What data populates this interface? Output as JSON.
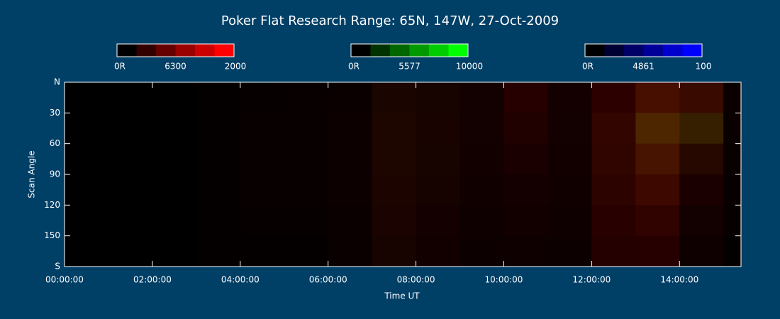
{
  "chart_data": {
    "type": "heatmap",
    "title": "Poker Flat Research Range: 65N, 147W, 27-Oct-2009",
    "x_label": "Time UT",
    "y_label": "Scan Angle",
    "background": "#003f66",
    "colorbars": [
      {
        "name": "6300",
        "color": "#ff0000",
        "min_label": "0R",
        "max": 2000
      },
      {
        "name": "5577",
        "color": "#00ff00",
        "min_label": "0R",
        "max": 10000
      },
      {
        "name": "4861",
        "color": "#0000ff",
        "min_label": "0R",
        "max": 100
      }
    ],
    "xlim": [
      0,
      15.4
    ],
    "xticks": [
      {
        "value": 0,
        "label": "00:00:00"
      },
      {
        "value": 2,
        "label": "02:00:00"
      },
      {
        "value": 4,
        "label": "04:00:00"
      },
      {
        "value": 6,
        "label": "06:00:00"
      },
      {
        "value": 8,
        "label": "08:00:00"
      },
      {
        "value": 10,
        "label": "10:00:00"
      },
      {
        "value": 12,
        "label": "12:00:00"
      },
      {
        "value": 14,
        "label": "14:00:00"
      }
    ],
    "ylim": [
      0,
      180
    ],
    "yticks": [
      {
        "value": 0,
        "label": "N"
      },
      30,
      60,
      90,
      120,
      150,
      {
        "value": 180,
        "label": "S"
      }
    ],
    "x_bins": [
      0,
      1,
      2,
      3,
      4,
      5,
      6,
      7,
      8,
      9,
      10,
      11,
      12,
      13,
      14,
      15,
      15.4
    ],
    "y_bins": [
      0,
      30,
      60,
      90,
      120,
      150,
      180
    ],
    "series": [
      {
        "name": "6300",
        "values": [
          [
            0,
            0,
            0,
            30,
            50,
            60,
            90,
            200,
            180,
            150,
            300,
            160,
            350,
            550,
            450,
            80
          ],
          [
            0,
            0,
            0,
            40,
            60,
            60,
            100,
            230,
            190,
            150,
            260,
            150,
            400,
            600,
            420,
            80
          ],
          [
            0,
            0,
            0,
            40,
            60,
            60,
            100,
            230,
            180,
            140,
            200,
            140,
            380,
            550,
            300,
            70
          ],
          [
            0,
            0,
            0,
            40,
            60,
            60,
            100,
            220,
            170,
            130,
            160,
            130,
            350,
            480,
            200,
            60
          ],
          [
            0,
            0,
            0,
            40,
            50,
            50,
            90,
            200,
            160,
            120,
            140,
            120,
            320,
            380,
            150,
            50
          ],
          [
            0,
            0,
            0,
            30,
            40,
            40,
            80,
            180,
            140,
            100,
            120,
            100,
            280,
            300,
            120,
            40
          ]
        ]
      },
      {
        "name": "5577",
        "values": [
          [
            0,
            0,
            0,
            0,
            0,
            0,
            0,
            200,
            100,
            0,
            0,
            0,
            0,
            600,
            400,
            0
          ],
          [
            0,
            0,
            0,
            0,
            0,
            0,
            0,
            200,
            100,
            0,
            0,
            0,
            200,
            1500,
            1200,
            0
          ],
          [
            0,
            0,
            0,
            0,
            0,
            0,
            0,
            200,
            100,
            0,
            0,
            0,
            200,
            800,
            300,
            0
          ],
          [
            0,
            0,
            0,
            0,
            0,
            0,
            0,
            150,
            100,
            0,
            0,
            0,
            100,
            300,
            0,
            0
          ],
          [
            0,
            0,
            0,
            0,
            0,
            0,
            0,
            100,
            0,
            0,
            0,
            0,
            0,
            100,
            0,
            0
          ],
          [
            0,
            0,
            0,
            0,
            0,
            0,
            0,
            100,
            0,
            0,
            0,
            0,
            0,
            0,
            0,
            0
          ]
        ]
      }
    ]
  }
}
